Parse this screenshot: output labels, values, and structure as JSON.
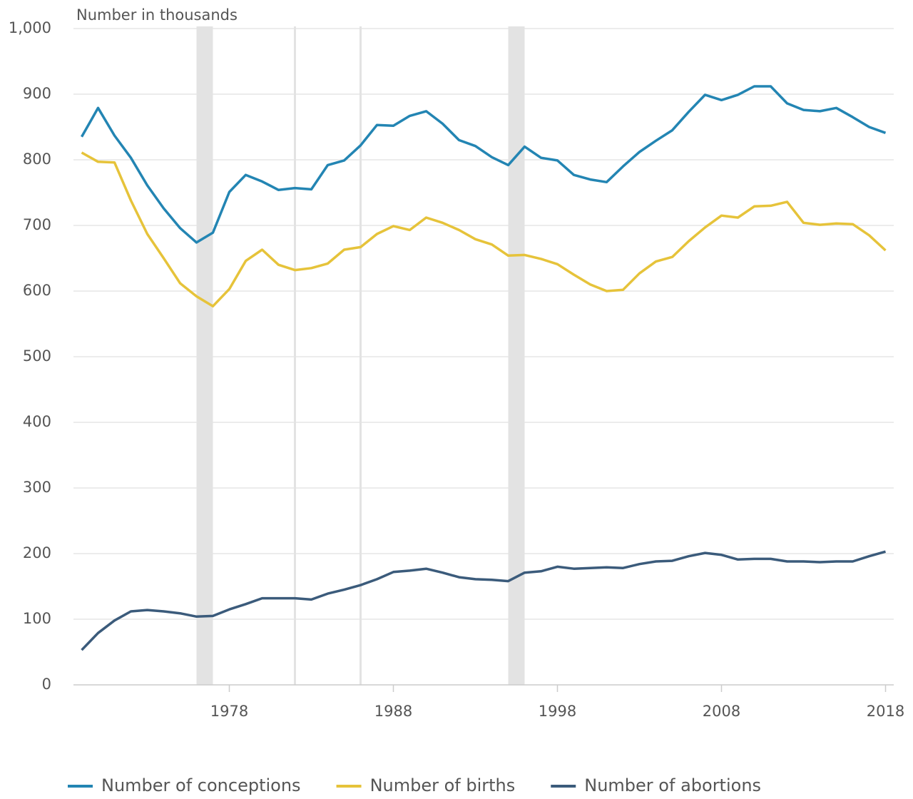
{
  "chart_data": {
    "type": "line",
    "y_axis_label": "Number in thousands",
    "x": [
      1969,
      1970,
      1971,
      1972,
      1973,
      1974,
      1975,
      1976,
      1977,
      1978,
      1979,
      1980,
      1981,
      1982,
      1983,
      1984,
      1985,
      1986,
      1987,
      1988,
      1989,
      1990,
      1991,
      1992,
      1993,
      1994,
      1995,
      1996,
      1997,
      1998,
      1999,
      2000,
      2001,
      2002,
      2003,
      2004,
      2005,
      2006,
      2007,
      2008,
      2009,
      2010,
      2011,
      2012,
      2013,
      2014,
      2015,
      2016,
      2017,
      2018
    ],
    "series": [
      {
        "name": "Number of conceptions",
        "color": "#2385b3",
        "values": [
          835,
          879,
          837,
          803,
          761,
          726,
          696,
          674,
          689,
          751,
          777,
          767,
          754,
          757,
          755,
          792,
          799,
          822,
          853,
          852,
          867,
          874,
          855,
          830,
          821,
          804,
          792,
          820,
          803,
          799,
          777,
          770,
          766,
          790,
          812,
          829,
          845,
          873,
          899,
          891,
          899,
          912,
          912,
          886,
          876,
          874,
          879,
          865,
          850,
          841
        ]
      },
      {
        "name": "Number of births",
        "color": "#e6c33a",
        "values": [
          811,
          797,
          796,
          738,
          687,
          650,
          612,
          592,
          577,
          603,
          646,
          663,
          640,
          632,
          635,
          642,
          663,
          667,
          687,
          699,
          693,
          712,
          704,
          693,
          679,
          671,
          654,
          655,
          649,
          641,
          625,
          610,
          600,
          602,
          627,
          645,
          652,
          676,
          697,
          715,
          712,
          729,
          730,
          736,
          704,
          701,
          703,
          702,
          685,
          662
        ]
      },
      {
        "name": "Number of abortions",
        "color": "#3b5b7b",
        "values": [
          53,
          79,
          98,
          112,
          114,
          112,
          109,
          104,
          105,
          115,
          123,
          132,
          132,
          132,
          130,
          139,
          145,
          152,
          161,
          172,
          174,
          177,
          171,
          164,
          161,
          160,
          158,
          171,
          173,
          180,
          177,
          178,
          179,
          178,
          184,
          188,
          189,
          196,
          201,
          198,
          191,
          192,
          192,
          188,
          188,
          187,
          188,
          188,
          196,
          203
        ]
      }
    ],
    "highlight_bands": [
      [
        1976,
        1977
      ],
      [
        1995,
        1996
      ]
    ],
    "highlight_lines": [
      1982,
      1986
    ],
    "xlim": [
      1968.5,
      2018.5
    ],
    "xticks": [
      1978,
      1988,
      1998,
      2008,
      2018
    ],
    "ylim": [
      0,
      1000
    ],
    "yticks": [
      0,
      100,
      200,
      300,
      400,
      500,
      600,
      700,
      800,
      900,
      {
        "value": 1000,
        "label": "1,000"
      }
    ],
    "grid": true,
    "legend": "bottom"
  }
}
